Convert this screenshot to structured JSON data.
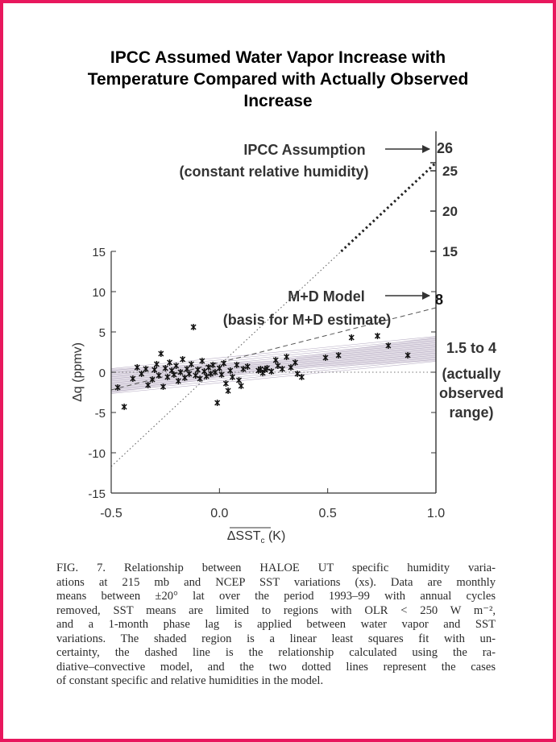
{
  "title_lines": [
    "IPCC Assumed Water Vapor Increase with",
    "Temperature Compared with Actually Observed",
    "Increase"
  ],
  "chart_data": {
    "type": "scatter",
    "xlabel": "ΔSST",
    "xlabel_sub": "c",
    "xlabel_unit": " (K)",
    "ylabel": "Δq (ppmv)",
    "xlim": [
      -0.5,
      1.0
    ],
    "ylim": [
      -15,
      15
    ],
    "x_ticks": [
      "-0.5",
      "0.0",
      "0.5",
      "1.0"
    ],
    "y_ticks": [
      "15",
      "10",
      "5",
      "0",
      "-5",
      "-10",
      "-15"
    ],
    "upper_axis_ticks": [
      "26",
      "25",
      "20",
      "15"
    ],
    "points": [
      {
        "x": -0.47,
        "y": -1.9
      },
      {
        "x": -0.44,
        "y": -4.3
      },
      {
        "x": -0.4,
        "y": -0.8
      },
      {
        "x": -0.38,
        "y": 0.6
      },
      {
        "x": -0.36,
        "y": -0.2
      },
      {
        "x": -0.34,
        "y": 0.4
      },
      {
        "x": -0.33,
        "y": -1.6
      },
      {
        "x": -0.31,
        "y": -0.9
      },
      {
        "x": -0.3,
        "y": 0.3
      },
      {
        "x": -0.29,
        "y": 1.0
      },
      {
        "x": -0.28,
        "y": -0.4
      },
      {
        "x": -0.27,
        "y": 2.3
      },
      {
        "x": -0.26,
        "y": -1.8
      },
      {
        "x": -0.25,
        "y": 0.5
      },
      {
        "x": -0.24,
        "y": -0.6
      },
      {
        "x": -0.23,
        "y": 1.2
      },
      {
        "x": -0.22,
        "y": 0.2
      },
      {
        "x": -0.21,
        "y": -0.3
      },
      {
        "x": -0.2,
        "y": 0.8
      },
      {
        "x": -0.19,
        "y": -1.1
      },
      {
        "x": -0.18,
        "y": 0.0
      },
      {
        "x": -0.17,
        "y": 1.6
      },
      {
        "x": -0.16,
        "y": -0.7
      },
      {
        "x": -0.15,
        "y": 0.4
      },
      {
        "x": -0.14,
        "y": -0.2
      },
      {
        "x": -0.13,
        "y": 1.0
      },
      {
        "x": -0.12,
        "y": 5.6
      },
      {
        "x": -0.11,
        "y": -0.4
      },
      {
        "x": -0.1,
        "y": 0.3
      },
      {
        "x": -0.09,
        "y": -0.8
      },
      {
        "x": -0.08,
        "y": 1.4
      },
      {
        "x": -0.07,
        "y": 0.1
      },
      {
        "x": -0.06,
        "y": -0.5
      },
      {
        "x": -0.05,
        "y": 0.6
      },
      {
        "x": -0.04,
        "y": -0.2
      },
      {
        "x": -0.03,
        "y": 0.9
      },
      {
        "x": -0.02,
        "y": 0.0
      },
      {
        "x": -0.01,
        "y": -3.8
      },
      {
        "x": 0.0,
        "y": 0.5
      },
      {
        "x": 0.01,
        "y": -0.3
      },
      {
        "x": 0.02,
        "y": 1.1
      },
      {
        "x": 0.03,
        "y": -1.4
      },
      {
        "x": 0.04,
        "y": -2.3
      },
      {
        "x": 0.05,
        "y": 0.2
      },
      {
        "x": 0.06,
        "y": -0.6
      },
      {
        "x": 0.08,
        "y": 0.9
      },
      {
        "x": 0.09,
        "y": -1.0
      },
      {
        "x": 0.1,
        "y": -1.7
      },
      {
        "x": 0.11,
        "y": 0.4
      },
      {
        "x": 0.13,
        "y": 0.7
      },
      {
        "x": 0.18,
        "y": 0.2
      },
      {
        "x": 0.19,
        "y": 0.4
      },
      {
        "x": 0.2,
        "y": -0.1
      },
      {
        "x": 0.21,
        "y": 0.3
      },
      {
        "x": 0.22,
        "y": 0.5
      },
      {
        "x": 0.24,
        "y": 0.1
      },
      {
        "x": 0.26,
        "y": 1.5
      },
      {
        "x": 0.27,
        "y": 0.8
      },
      {
        "x": 0.29,
        "y": 0.4
      },
      {
        "x": 0.31,
        "y": 1.9
      },
      {
        "x": 0.33,
        "y": 0.6
      },
      {
        "x": 0.35,
        "y": 1.2
      },
      {
        "x": 0.36,
        "y": -0.2
      },
      {
        "x": 0.38,
        "y": -0.6
      },
      {
        "x": 0.49,
        "y": 1.8
      },
      {
        "x": 0.55,
        "y": 2.1
      },
      {
        "x": 0.61,
        "y": 4.3
      },
      {
        "x": 0.73,
        "y": 4.5
      },
      {
        "x": 0.78,
        "y": 3.3
      },
      {
        "x": 0.87,
        "y": 2.1
      }
    ],
    "lines": {
      "dashed_md_model": [
        [
          -0.5,
          -2.2
        ],
        [
          1.0,
          8.0
        ]
      ],
      "dotted_constant_specific": [
        [
          -0.5,
          0.0
        ],
        [
          1.0,
          0.0
        ]
      ],
      "dotted_constant_relative": [
        [
          -0.5,
          -11.7
        ],
        [
          1.0,
          26.0
        ]
      ]
    },
    "fit_band": {
      "center": [
        [
          -0.5,
          -1.1
        ],
        [
          1.0,
          2.9
        ]
      ],
      "half_width": 0.55,
      "fan": 1.0
    },
    "annotations": {
      "ipcc": {
        "line1": "IPCC Assumption",
        "line2": "(constant relative humidity)",
        "value": "26"
      },
      "md": {
        "line1": "M+D Model",
        "line2": "(basis for M+D estimate)",
        "value": "8"
      },
      "observed": {
        "line1": "1.5 to 4",
        "line2": "(actually",
        "line3": "observed",
        "line4": "range)"
      }
    }
  },
  "caption_lines": [
    "FIG. 7. Relationship between HALOE UT specific humidity varia-",
    "ations at 215 mb and NCEP SST variations (xs). Data are monthly",
    "means between ±20° lat over the period 1993–99 with annual cycles",
    "removed, SST means are limited to regions with OLR < 250 W m⁻²,",
    "and a 1-month phase lag is applied between water vapor and SST",
    "variations. The shaded region is a linear least squares fit with un-",
    "certainty, the dashed line is the relationship calculated using the ra-",
    "diative–convective model, and the two dotted lines represent the cases",
    "of constant specific and relative humidities in the model."
  ]
}
